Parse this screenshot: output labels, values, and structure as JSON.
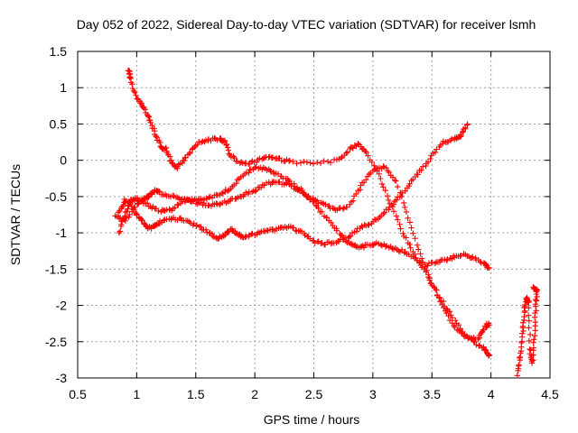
{
  "chart_data": {
    "type": "scatter",
    "title": "Day 052 of 2022, Sidereal Day-to-day VTEC variation (SDTVAR) for receiver lsmh",
    "xlabel": "GPS time / hours",
    "ylabel": "SDTVAR / TECUs",
    "xlim": [
      0.5,
      4.5
    ],
    "ylim": [
      -3,
      1.5
    ],
    "grid": true,
    "marker": "+",
    "x_ticks": [
      {
        "value": 0.5,
        "label": "0.5"
      },
      {
        "value": 1.0,
        "label": "1"
      },
      {
        "value": 1.5,
        "label": "1.5"
      },
      {
        "value": 2.0,
        "label": "2"
      },
      {
        "value": 2.5,
        "label": "2.5"
      },
      {
        "value": 3.0,
        "label": "3"
      },
      {
        "value": 3.5,
        "label": "3.5"
      },
      {
        "value": 4.0,
        "label": "4"
      },
      {
        "value": 4.5,
        "label": "4.5"
      }
    ],
    "y_ticks": [
      {
        "value": 1.5,
        "label": "1.5"
      },
      {
        "value": 1.0,
        "label": "1"
      },
      {
        "value": 0.5,
        "label": "0.5"
      },
      {
        "value": 0.0,
        "label": "0"
      },
      {
        "value": -0.5,
        "label": "-0.5"
      },
      {
        "value": -1.0,
        "label": "-1"
      },
      {
        "value": -1.5,
        "label": "-1.5"
      },
      {
        "value": -2.0,
        "label": "-2"
      },
      {
        "value": -2.5,
        "label": "-2.5"
      },
      {
        "value": -3.0,
        "label": "-3"
      }
    ],
    "series": [
      {
        "name": "arc-1",
        "color": "#ff0000",
        "points": [
          [
            0.93,
            1.25
          ],
          [
            0.95,
            1.12
          ],
          [
            1.0,
            0.85
          ],
          [
            1.05,
            0.75
          ],
          [
            1.1,
            0.6
          ],
          [
            1.15,
            0.4
          ],
          [
            1.2,
            0.2
          ],
          [
            1.25,
            0.15
          ],
          [
            1.3,
            -0.05
          ],
          [
            1.35,
            -0.1
          ],
          [
            1.42,
            0.05
          ],
          [
            1.5,
            0.22
          ],
          [
            1.6,
            0.28
          ],
          [
            1.7,
            0.3
          ],
          [
            1.75,
            0.25
          ],
          [
            1.8,
            0.05
          ],
          [
            1.9,
            -0.05
          ],
          [
            2.0,
            -0.02
          ],
          [
            2.1,
            0.05
          ],
          [
            2.2,
            0.02
          ],
          [
            2.3,
            -0.02
          ],
          [
            2.5,
            -0.05
          ],
          [
            2.7,
            0.0
          ],
          [
            2.8,
            0.15
          ],
          [
            2.88,
            0.22
          ],
          [
            2.95,
            0.1
          ],
          [
            3.05,
            -0.2
          ],
          [
            3.15,
            -0.6
          ],
          [
            3.25,
            -1.0
          ],
          [
            3.35,
            -1.3
          ],
          [
            3.45,
            -1.55
          ],
          [
            3.55,
            -1.85
          ],
          [
            3.65,
            -2.1
          ],
          [
            3.75,
            -2.35
          ],
          [
            3.85,
            -2.5
          ],
          [
            3.95,
            -2.6
          ],
          [
            3.98,
            -2.7
          ]
        ]
      },
      {
        "name": "arc-2",
        "color": "#ff0000",
        "points": [
          [
            0.85,
            -0.72
          ],
          [
            0.9,
            -0.55
          ],
          [
            0.95,
            -0.6
          ],
          [
            1.0,
            -0.75
          ],
          [
            1.05,
            -0.85
          ],
          [
            1.1,
            -0.95
          ],
          [
            1.15,
            -0.9
          ],
          [
            1.2,
            -0.85
          ],
          [
            1.3,
            -0.8
          ],
          [
            1.4,
            -0.82
          ],
          [
            1.5,
            -0.9
          ],
          [
            1.6,
            -0.98
          ],
          [
            1.68,
            -1.08
          ],
          [
            1.75,
            -1.02
          ],
          [
            1.8,
            -0.95
          ],
          [
            1.85,
            -1.02
          ],
          [
            1.9,
            -1.05
          ],
          [
            2.0,
            -1.02
          ],
          [
            2.1,
            -0.98
          ],
          [
            2.2,
            -0.95
          ],
          [
            2.3,
            -0.92
          ],
          [
            2.4,
            -1.0
          ],
          [
            2.5,
            -1.12
          ],
          [
            2.6,
            -1.15
          ],
          [
            2.7,
            -1.12
          ],
          [
            2.8,
            -1.05
          ],
          [
            2.9,
            -0.92
          ],
          [
            3.0,
            -0.85
          ],
          [
            3.1,
            -0.72
          ],
          [
            3.2,
            -0.55
          ],
          [
            3.3,
            -0.35
          ],
          [
            3.4,
            -0.15
          ],
          [
            3.5,
            0.05
          ],
          [
            3.6,
            0.25
          ],
          [
            3.7,
            0.3
          ],
          [
            3.75,
            0.35
          ],
          [
            3.8,
            0.5
          ]
        ]
      },
      {
        "name": "arc-3",
        "color": "#ff0000",
        "points": [
          [
            0.82,
            -0.75
          ],
          [
            0.9,
            -0.85
          ],
          [
            1.0,
            -0.6
          ],
          [
            1.05,
            -0.55
          ],
          [
            1.1,
            -0.5
          ],
          [
            1.15,
            -0.42
          ],
          [
            1.2,
            -0.45
          ],
          [
            1.3,
            -0.5
          ],
          [
            1.4,
            -0.55
          ],
          [
            1.5,
            -0.58
          ],
          [
            1.6,
            -0.62
          ],
          [
            1.7,
            -0.6
          ],
          [
            1.8,
            -0.55
          ],
          [
            1.9,
            -0.48
          ],
          [
            2.0,
            -0.42
          ],
          [
            2.1,
            -0.32
          ],
          [
            2.2,
            -0.3
          ],
          [
            2.3,
            -0.35
          ],
          [
            2.4,
            -0.45
          ],
          [
            2.5,
            -0.55
          ],
          [
            2.6,
            -0.62
          ],
          [
            2.7,
            -0.68
          ],
          [
            2.8,
            -0.62
          ],
          [
            2.9,
            -0.35
          ],
          [
            3.0,
            -0.15
          ],
          [
            3.1,
            -0.08
          ],
          [
            3.2,
            -0.3
          ],
          [
            3.3,
            -0.8
          ],
          [
            3.4,
            -1.3
          ],
          [
            3.5,
            -1.7
          ],
          [
            3.6,
            -2.05
          ],
          [
            3.7,
            -2.3
          ],
          [
            3.8,
            -2.45
          ],
          [
            3.9,
            -2.45
          ],
          [
            3.95,
            -2.3
          ],
          [
            3.98,
            -2.25
          ]
        ]
      },
      {
        "name": "arc-4",
        "color": "#ff0000",
        "points": [
          [
            0.85,
            -1.0
          ],
          [
            0.9,
            -0.75
          ],
          [
            0.95,
            -0.55
          ],
          [
            1.0,
            -0.52
          ],
          [
            1.1,
            -0.62
          ],
          [
            1.2,
            -0.7
          ],
          [
            1.3,
            -0.68
          ],
          [
            1.4,
            -0.55
          ],
          [
            1.5,
            -0.55
          ],
          [
            1.6,
            -0.52
          ],
          [
            1.7,
            -0.48
          ],
          [
            1.8,
            -0.38
          ],
          [
            1.9,
            -0.2
          ],
          [
            2.0,
            -0.1
          ],
          [
            2.1,
            -0.12
          ],
          [
            2.2,
            -0.2
          ],
          [
            2.3,
            -0.3
          ],
          [
            2.4,
            -0.42
          ],
          [
            2.5,
            -0.58
          ],
          [
            2.6,
            -0.78
          ],
          [
            2.7,
            -0.98
          ],
          [
            2.8,
            -1.15
          ],
          [
            2.87,
            -1.2
          ],
          [
            2.95,
            -1.18
          ],
          [
            3.05,
            -1.15
          ],
          [
            3.15,
            -1.2
          ],
          [
            3.25,
            -1.25
          ],
          [
            3.35,
            -1.35
          ],
          [
            3.45,
            -1.45
          ],
          [
            3.55,
            -1.4
          ],
          [
            3.65,
            -1.35
          ],
          [
            3.75,
            -1.3
          ],
          [
            3.85,
            -1.35
          ],
          [
            3.95,
            -1.42
          ],
          [
            3.98,
            -1.5
          ]
        ]
      },
      {
        "name": "arc-5",
        "color": "#ff0000",
        "points": [
          [
            4.22,
            -2.95
          ],
          [
            4.25,
            -2.7
          ],
          [
            4.27,
            -2.4
          ],
          [
            4.28,
            -2.1
          ],
          [
            4.3,
            -1.9
          ],
          [
            4.32,
            -1.95
          ],
          [
            4.33,
            -2.6
          ],
          [
            4.35,
            -2.8
          ],
          [
            4.37,
            -2.4
          ],
          [
            4.38,
            -2.0
          ],
          [
            4.39,
            -1.8
          ],
          [
            4.36,
            -1.75
          ]
        ]
      }
    ]
  }
}
